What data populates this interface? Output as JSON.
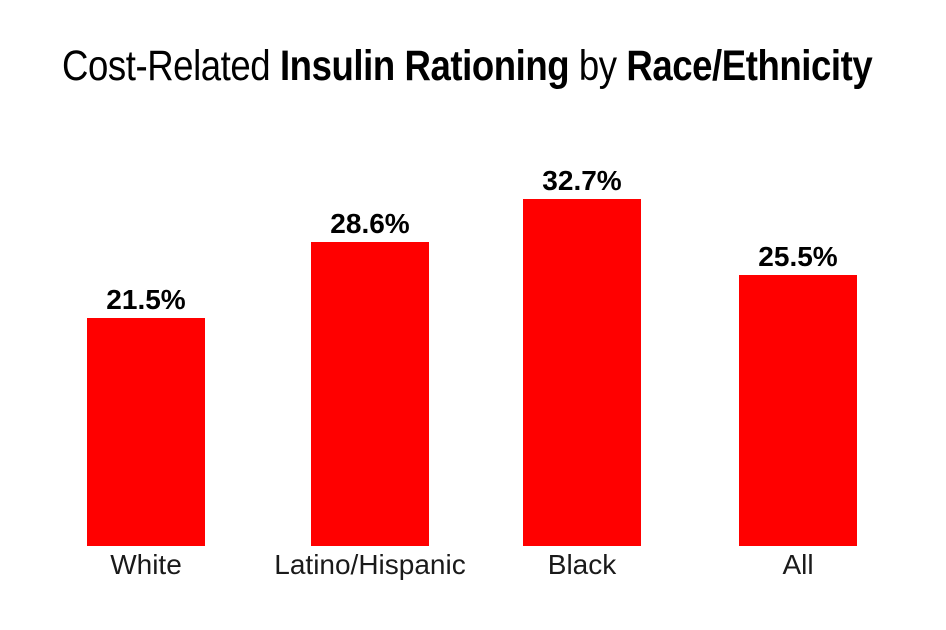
{
  "title": {
    "segments": [
      {
        "text": "Cost-Related ",
        "bold": false
      },
      {
        "text": "Insulin Rationing",
        "bold": true
      },
      {
        "text": " by ",
        "bold": false
      },
      {
        "text": "Race/Ethnicity",
        "bold": true
      }
    ]
  },
  "chart_data": {
    "type": "bar",
    "title": "Cost-Related Insulin Rationing by Race/Ethnicity",
    "categories": [
      "White",
      "Latino/Hispanic",
      "Black",
      "All"
    ],
    "values": [
      21.5,
      28.6,
      32.7,
      25.5
    ],
    "value_labels": [
      "21.5%",
      "28.6%",
      "32.7%",
      "25.5%"
    ],
    "xlabel": "",
    "ylabel": "",
    "ylim": [
      0,
      35
    ],
    "bar_color": "#ff0000",
    "text_color": "#000000",
    "data_labels_shown": true,
    "axes_shown": false,
    "gridlines": false,
    "legend": false,
    "background": "#ffffff"
  }
}
